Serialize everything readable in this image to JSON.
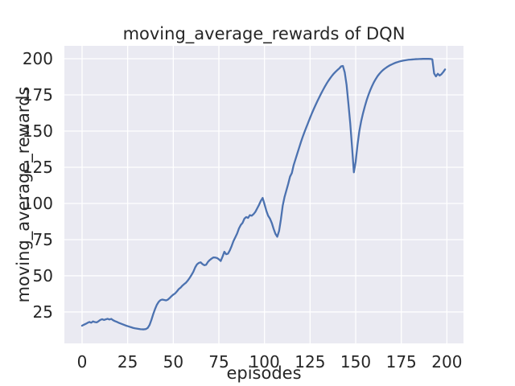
{
  "chart_data": {
    "type": "line",
    "title": "moving_average_rewards of DQN",
    "xlabel": "episodes",
    "ylabel": "moving_average_rewards",
    "legend": null,
    "grid": true,
    "style": "seaborn-darkgrid",
    "colors": {
      "line": "#4c72b0",
      "plot_background": "#eaeaf2",
      "gridline": "#ffffff",
      "text": "#262626",
      "figure_background": "#ffffff"
    },
    "xticks": [
      0,
      25,
      50,
      75,
      100,
      125,
      150,
      175,
      200
    ],
    "yticks": [
      25,
      50,
      75,
      100,
      125,
      150,
      175,
      200
    ],
    "xlim": [
      -9.7,
      209.1
    ],
    "ylim": [
      3.3,
      208.9
    ],
    "x_start": 0,
    "x_step": 1,
    "values": [
      15.5,
      16.2,
      16.8,
      17.5,
      18.1,
      17.6,
      18.5,
      18.0,
      17.8,
      18.6,
      19.5,
      20.0,
      19.5,
      19.9,
      20.3,
      19.8,
      20.2,
      19.3,
      18.7,
      18.2,
      17.6,
      17.1,
      16.6,
      16.1,
      15.6,
      15.2,
      14.8,
      14.4,
      14.0,
      13.7,
      13.5,
      13.3,
      13.1,
      13.0,
      13.0,
      13.2,
      14.0,
      16.0,
      19.5,
      23.5,
      27.0,
      30.0,
      32.0,
      33.2,
      33.6,
      33.3,
      33.0,
      33.5,
      34.6,
      35.9,
      37.0,
      37.8,
      39.2,
      40.8,
      41.8,
      43.2,
      44.3,
      45.3,
      46.8,
      48.6,
      50.6,
      52.8,
      55.8,
      57.9,
      58.9,
      59.3,
      58.1,
      57.3,
      57.6,
      59.6,
      60.9,
      61.9,
      62.7,
      62.6,
      62.3,
      61.4,
      60.2,
      63.2,
      66.6,
      64.9,
      65.3,
      67.6,
      70.6,
      74.0,
      76.6,
      79.2,
      82.7,
      85.1,
      86.6,
      89.5,
      90.6,
      90.0,
      91.9,
      91.5,
      92.6,
      94.2,
      96.6,
      99.0,
      101.8,
      103.8,
      99.5,
      95.0,
      91.5,
      89.5,
      86.5,
      82.5,
      79.0,
      77.0,
      81.0,
      89.0,
      98.5,
      104.5,
      109.0,
      113.5,
      118.5,
      121.0,
      126.5,
      130.5,
      134.5,
      138.5,
      142.5,
      146.2,
      149.6,
      152.8,
      156.0,
      159.2,
      162.3,
      165.2,
      168.0,
      170.7,
      173.3,
      175.8,
      178.2,
      180.5,
      182.7,
      184.7,
      186.5,
      188.2,
      189.7,
      191.0,
      192.2,
      193.3,
      194.7,
      195.0,
      190.5,
      182.0,
      169.0,
      155.5,
      139.0,
      121.5,
      129.0,
      140.5,
      150.0,
      156.8,
      162.2,
      167.0,
      171.3,
      175.0,
      178.3,
      181.2,
      183.8,
      186.0,
      188.0,
      189.6,
      191.0,
      192.2,
      193.2,
      194.1,
      194.9,
      195.6,
      196.2,
      196.8,
      197.3,
      197.7,
      198.1,
      198.4,
      198.7,
      198.9,
      199.1,
      199.3,
      199.4,
      199.5,
      199.6,
      199.7,
      199.75,
      199.8,
      199.85,
      199.9,
      199.9,
      199.9,
      199.9,
      199.85,
      199.6,
      189.8,
      187.8,
      189.6,
      188.4,
      189.3,
      190.8,
      192.6
    ]
  }
}
